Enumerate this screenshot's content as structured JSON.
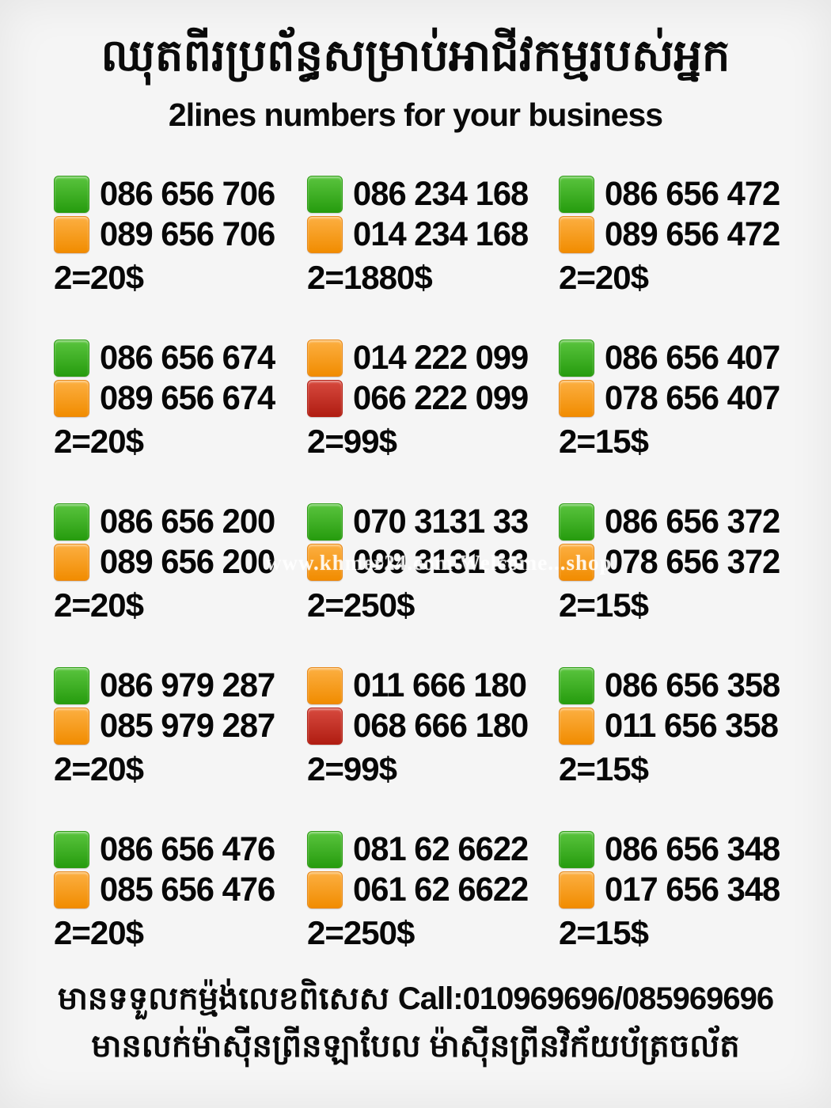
{
  "header": {
    "title_khmer": "ឈុតពីរប្រព័ន្ធសម្រាប់អាជីវកម្មរបស់អ្នក",
    "title_english": "2lines numbers for your business"
  },
  "watermark": "www.khmer24.com Welcome...shop",
  "colors": {
    "green": {
      "top": "#5ac43e",
      "bottom": "#269c0e",
      "border": "#2e9d14"
    },
    "orange": {
      "top": "#fcaf42",
      "bottom": "#f18c00",
      "border": "#e8891a"
    },
    "red": {
      "top": "#d74a3e",
      "bottom": "#b01d12",
      "border": "#b52317"
    }
  },
  "listings": [
    {
      "lines": [
        {
          "color": "green",
          "number": "086 656 706"
        },
        {
          "color": "orange",
          "number": "089 656 706"
        }
      ],
      "price": "2=20$"
    },
    {
      "lines": [
        {
          "color": "green",
          "number": "086 234 168"
        },
        {
          "color": "orange",
          "number": "014 234 168"
        }
      ],
      "price": "2=1880$"
    },
    {
      "lines": [
        {
          "color": "green",
          "number": "086 656 472"
        },
        {
          "color": "orange",
          "number": "089 656 472"
        }
      ],
      "price": "2=20$"
    },
    {
      "lines": [
        {
          "color": "green",
          "number": "086 656 674"
        },
        {
          "color": "orange",
          "number": "089 656 674"
        }
      ],
      "price": "2=20$"
    },
    {
      "lines": [
        {
          "color": "orange",
          "number": "014 222 099"
        },
        {
          "color": "red",
          "number": "066 222 099"
        }
      ],
      "price": "2=99$"
    },
    {
      "lines": [
        {
          "color": "green",
          "number": "086 656 407"
        },
        {
          "color": "orange",
          "number": "078 656 407"
        }
      ],
      "price": "2=15$"
    },
    {
      "lines": [
        {
          "color": "green",
          "number": "086 656 200"
        },
        {
          "color": "orange",
          "number": "089 656 200"
        }
      ],
      "price": "2=20$"
    },
    {
      "lines": [
        {
          "color": "green",
          "number": "070 3131 33"
        },
        {
          "color": "orange",
          "number": "099 3131 33"
        }
      ],
      "price": "2=250$"
    },
    {
      "lines": [
        {
          "color": "green",
          "number": "086 656 372"
        },
        {
          "color": "orange",
          "number": "078 656 372"
        }
      ],
      "price": "2=15$"
    },
    {
      "lines": [
        {
          "color": "green",
          "number": "086 979 287"
        },
        {
          "color": "orange",
          "number": "085 979 287"
        }
      ],
      "price": "2=20$"
    },
    {
      "lines": [
        {
          "color": "orange",
          "number": "011 666 180"
        },
        {
          "color": "red",
          "number": "068 666 180"
        }
      ],
      "price": "2=99$"
    },
    {
      "lines": [
        {
          "color": "green",
          "number": "086 656 358"
        },
        {
          "color": "orange",
          "number": "011 656 358"
        }
      ],
      "price": "2=15$"
    },
    {
      "lines": [
        {
          "color": "green",
          "number": "086 656 476"
        },
        {
          "color": "orange",
          "number": "085 656 476"
        }
      ],
      "price": "2=20$"
    },
    {
      "lines": [
        {
          "color": "green",
          "number": "081 62 6622"
        },
        {
          "color": "orange",
          "number": "061 62 6622"
        }
      ],
      "price": "2=250$"
    },
    {
      "lines": [
        {
          "color": "green",
          "number": "086 656 348"
        },
        {
          "color": "orange",
          "number": "017 656 348"
        }
      ],
      "price": "2=15$"
    }
  ],
  "footer": {
    "line1_khmer": "មានទទួលកម្ម៉ង់លេខពិសេស",
    "line1_call": "Call:010969696/085969696",
    "line2_khmer": "មានលក់ម៉ាស៊ីនព្រីនឡាបែល ម៉ាស៊ីនព្រីនវិក័យប័ត្រចល័ត"
  }
}
